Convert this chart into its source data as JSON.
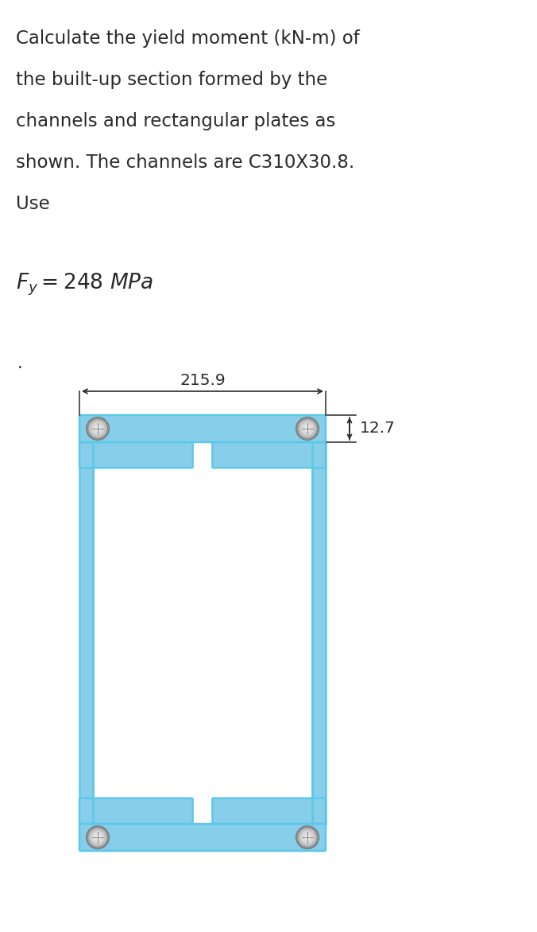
{
  "title_line1": "Calculate the yield moment (kN-m) of",
  "title_line2": "the built-up section formed by the",
  "title_line3": "channels and rectangular plates as",
  "title_line4": "shown. The channels are C310X30.8.",
  "title_line5": "Use",
  "formula_fy": "$F_y = 248\\ MPa$",
  "dot": ".",
  "dim_width": "215.9",
  "dim_thickness": "12.7",
  "bg_color": "#ffffff",
  "section_fill": "#87CEEB",
  "section_edge": "#5bc8e8",
  "text_color": "#2a2a2a",
  "title_fontsize": 16.5,
  "formula_fontsize": 19,
  "dim_fontsize": 14.5
}
